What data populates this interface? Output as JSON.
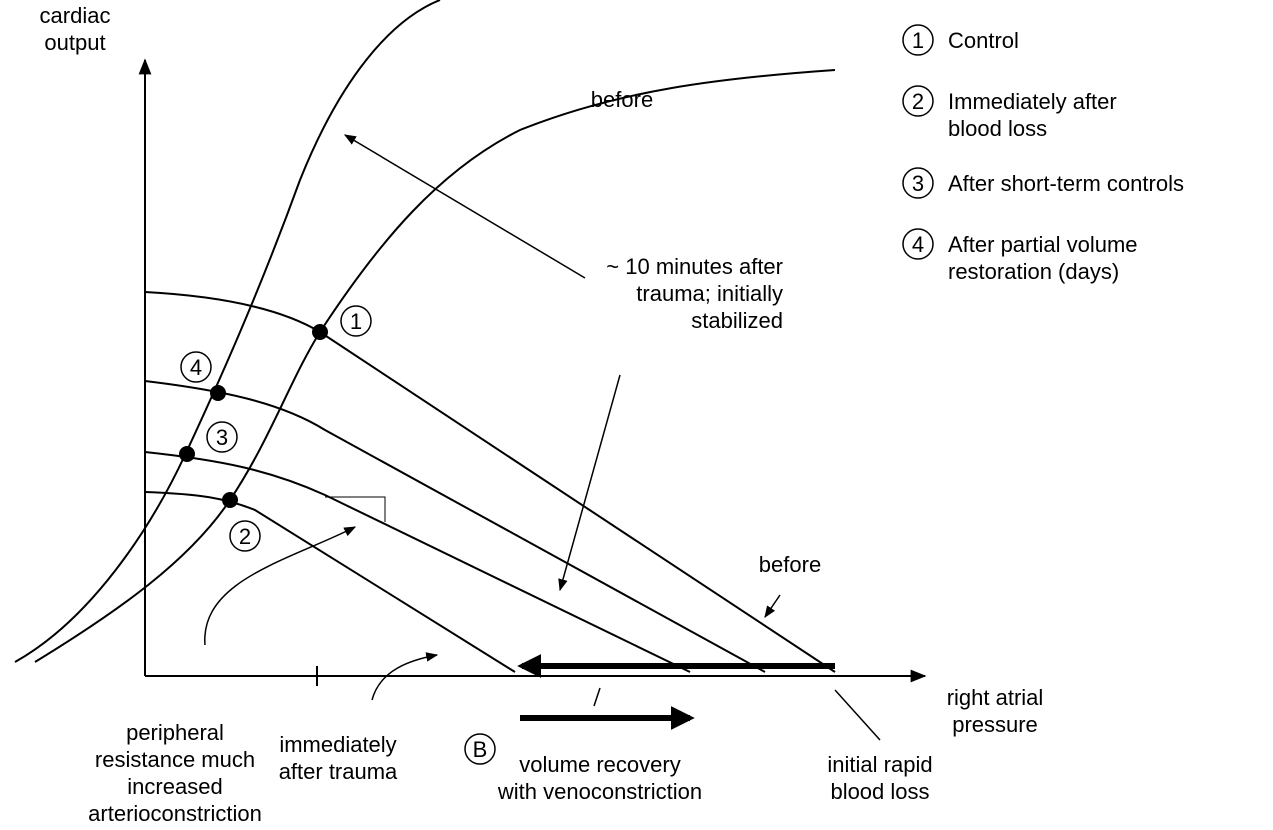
{
  "axes": {
    "y_label": [
      "cardiac",
      "output"
    ],
    "x_label": [
      "right atrial",
      "pressure"
    ]
  },
  "curve_labels": {
    "before_top": "before",
    "before_right": "before"
  },
  "annotations": {
    "ten_minutes": [
      "~ 10 minutes after",
      "trauma; initially",
      "stabilized"
    ],
    "peripheral": [
      "peripheral",
      "resistance much",
      "increased",
      "arterioconstriction"
    ],
    "immediately": [
      "immediately",
      "after trauma"
    ],
    "volume_recovery": [
      "volume recovery",
      "with venoconstriction"
    ],
    "initial_loss": [
      "initial rapid",
      "blood loss"
    ],
    "b_marker": "B"
  },
  "points": [
    "1",
    "2",
    "3",
    "4"
  ],
  "legend": [
    {
      "marker": "1",
      "lines": [
        "Control"
      ]
    },
    {
      "marker": "2",
      "lines": [
        "Immediately after",
        "blood loss"
      ]
    },
    {
      "marker": "3",
      "lines": [
        "After short-term controls"
      ]
    },
    {
      "marker": "4",
      "lines": [
        "After partial volume",
        "restoration (days)"
      ]
    }
  ]
}
